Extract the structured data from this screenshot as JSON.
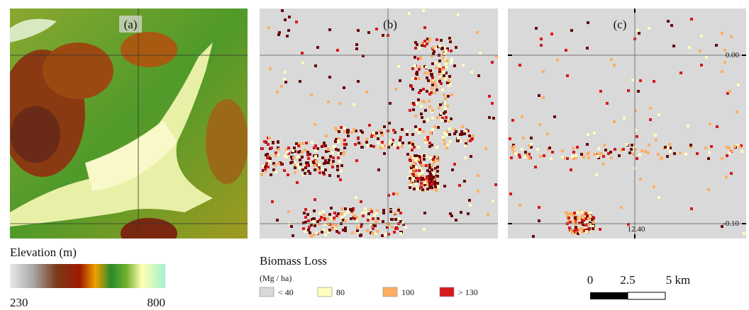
{
  "panels": [
    {
      "label": "(a)"
    },
    {
      "label": "(b)"
    },
    {
      "label": "(c)",
      "axis_labels": [
        "0.00",
        "-0.10",
        "12.40"
      ]
    }
  ],
  "elevation_legend": {
    "title": "Elevation (m)",
    "min": "230",
    "max": "800"
  },
  "biomass_legend": {
    "title": "Biomass Loss",
    "unit": "(Mg / ha)",
    "classes": [
      {
        "label": "< 40",
        "color": "#d9d9d9"
      },
      {
        "label": "80",
        "color": "#ffffbf"
      },
      {
        "label": "100",
        "color": "#fdae61"
      },
      {
        "label": "> 130",
        "color": "#d7191c"
      }
    ]
  },
  "scale_bar": {
    "labels": [
      "0",
      "2.5",
      "5 km"
    ]
  }
}
